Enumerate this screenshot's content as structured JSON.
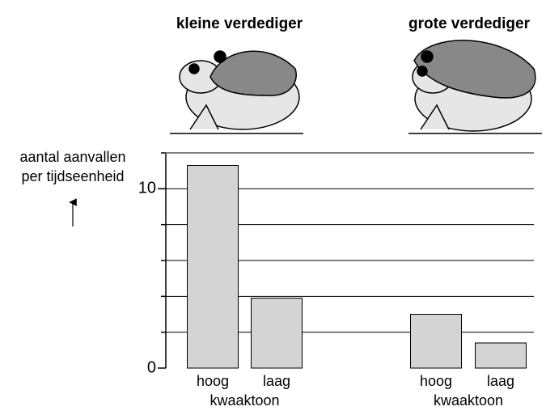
{
  "chart_data": {
    "type": "bar",
    "ylabel": [
      "aantal aanvallen",
      "per tijdseenheid"
    ],
    "groups": [
      {
        "name": "kleine verdediger",
        "categories": [
          "hoog",
          "laag"
        ],
        "values": [
          11.3,
          3.9
        ],
        "xlabel": "kwaaktoon"
      },
      {
        "name": "grote verdediger",
        "categories": [
          "hoog",
          "laag"
        ],
        "values": [
          3.0,
          1.4
        ],
        "xlabel": "kwaaktoon"
      }
    ],
    "color": "#d4d4d4",
    "ylim": [
      0,
      12
    ],
    "yticks": [
      0,
      10
    ],
    "ygrid": [
      2,
      4,
      6,
      8,
      10,
      12
    ],
    "grid": true
  }
}
